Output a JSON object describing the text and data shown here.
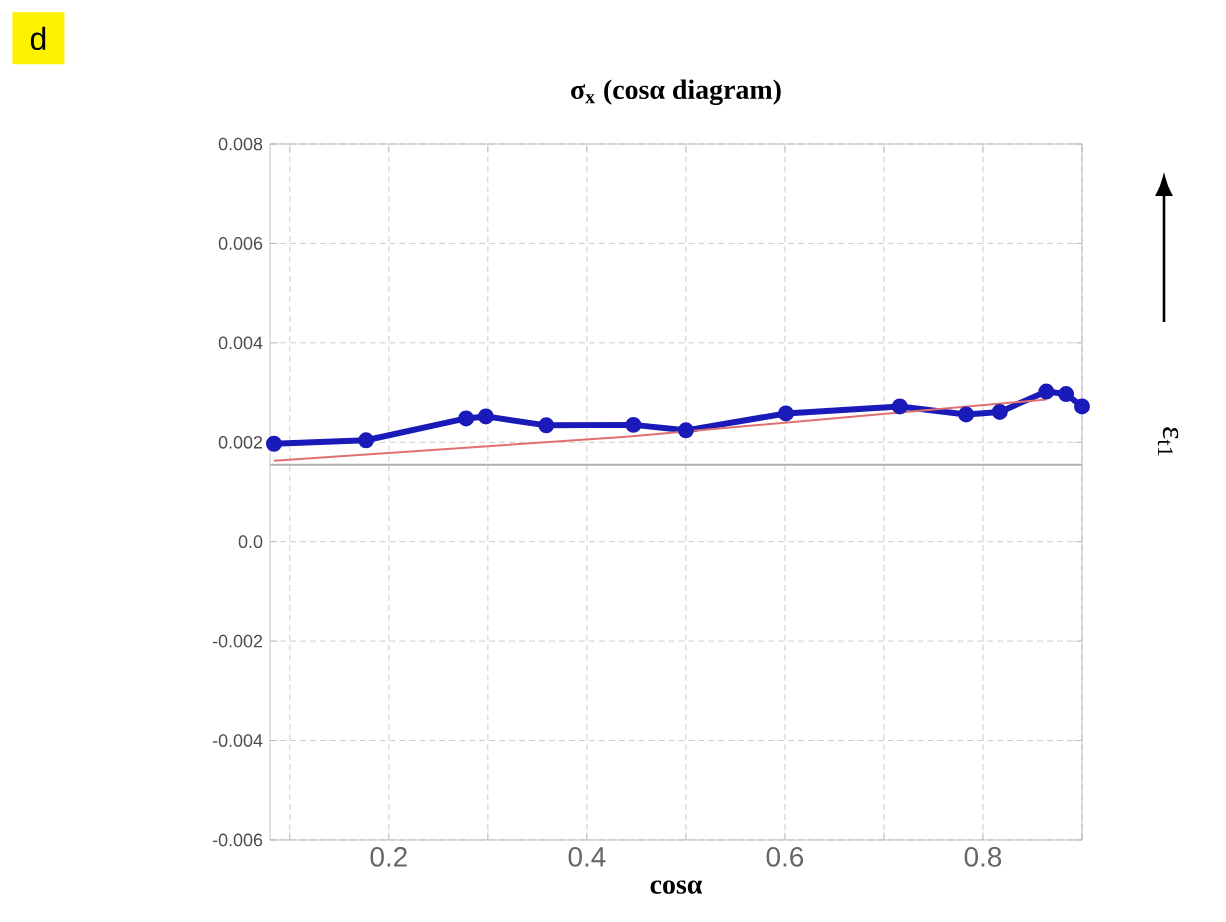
{
  "chart_data": {
    "type": "line",
    "title": "σ$_{x}$ (cosα diagram)",
    "xlabel": "cosα",
    "annotations": [
      "d",
      "ε$_{t1}$"
    ],
    "series": [
      {
        "color": "#1a1ab8",
        "marker": "circle",
        "x": [
          0.084,
          0.177,
          0.278,
          0.298,
          0.359,
          0.447,
          0.5,
          0.601,
          0.716,
          0.783,
          0.817,
          0.864,
          0.884,
          0.9
        ],
        "values": [
          0.00197,
          0.00204,
          0.00248,
          0.00252,
          0.00234,
          0.00235,
          0.00224,
          0.00258,
          0.00272,
          0.00256,
          0.00261,
          0.00302,
          0.00297,
          0.00272
        ]
      },
      {
        "color": "#e07070",
        "x": [
          0.084,
          0.44,
          0.864
        ],
        "values": [
          0.00163,
          0.00211,
          0.00286
        ]
      }
    ],
    "ref_lines": [
      {
        "axis": "y",
        "value": 0.00155,
        "color": "#b0b0b0"
      }
    ],
    "xlim": [
      0.08,
      0.9
    ],
    "xticks": [
      {
        "value": 0.1,
        "label": null
      },
      0.2,
      {
        "value": 0.3,
        "label": null
      },
      0.4,
      {
        "value": 0.5,
        "label": null
      },
      0.6,
      {
        "value": 0.7,
        "label": null
      },
      0.8,
      {
        "value": 0.9,
        "label": null
      }
    ],
    "ylim": [
      -0.006,
      0.008
    ],
    "yticks": [
      -0.006,
      -0.004,
      -0.002,
      {
        "value": 0,
        "label": "0.0"
      },
      0.002,
      0.004,
      0.006,
      0.008
    ],
    "grid": true
  }
}
